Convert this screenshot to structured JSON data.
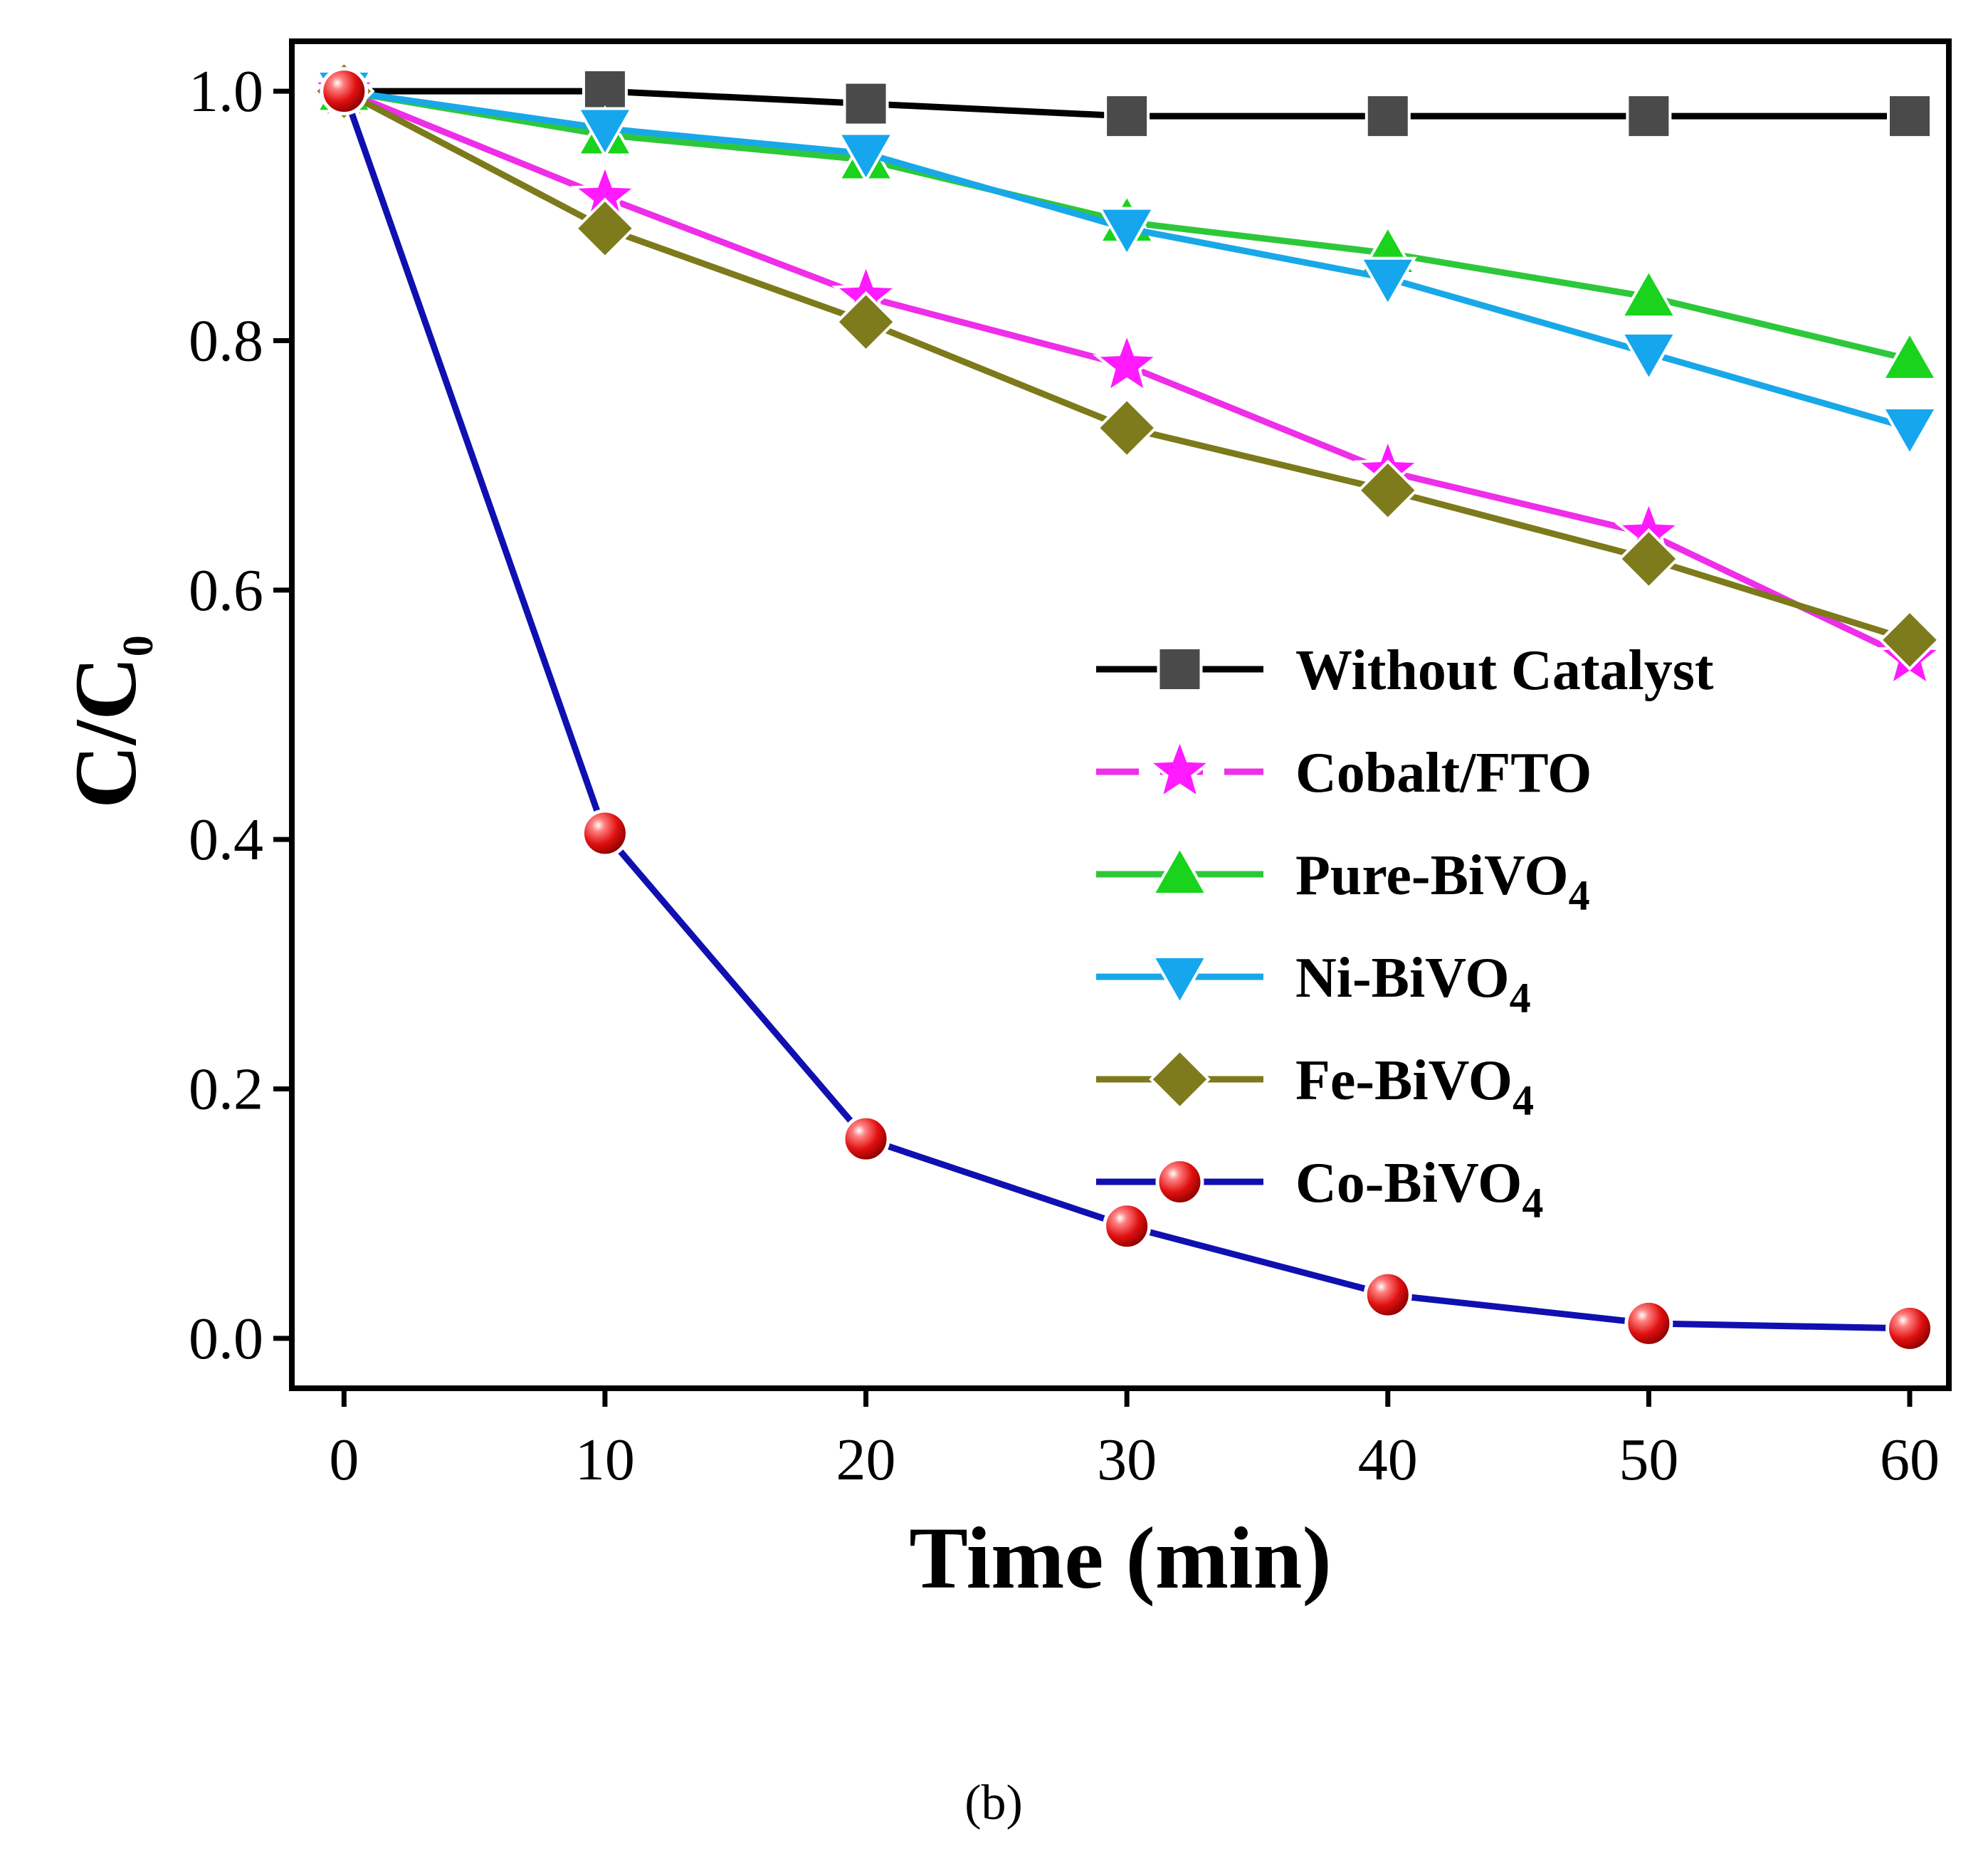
{
  "chart_data": {
    "type": "line",
    "panel_label": "(b)",
    "xlabel": "Time (min)",
    "ylabel_main": "C/C",
    "ylabel_sub": "0",
    "x": [
      0,
      10,
      20,
      30,
      40,
      50,
      60
    ],
    "xlim": [
      -2,
      61.5
    ],
    "ylim": [
      -0.04,
      1.04
    ],
    "x_ticks": [
      0,
      10,
      20,
      30,
      40,
      50,
      60
    ],
    "x_tick_labels": [
      "0",
      "10",
      "20",
      "30",
      "40",
      "50",
      "60"
    ],
    "y_ticks": [
      0.0,
      0.2,
      0.4,
      0.6,
      0.8,
      1.0
    ],
    "y_tick_labels": [
      "0.0",
      "0.2",
      "0.4",
      "0.6",
      "0.8",
      "1.0"
    ],
    "grid": false,
    "legend_position": "center-right",
    "series": [
      {
        "name": "Without Catalyst",
        "label_main": "Without Catalyst",
        "label_sub": "",
        "color": "#000000",
        "marker": "square",
        "marker_color": "#4a4a4a",
        "dashed": false,
        "values": [
          1.0,
          1.0,
          0.99,
          0.98,
          0.98,
          0.98,
          0.98
        ]
      },
      {
        "name": "Cobalt/FTO",
        "label_main": "Cobalt/FTO",
        "label_sub": "",
        "color": "#ee2ee8",
        "marker": "star",
        "marker_color": "#ff1aff",
        "dashed": true,
        "values": [
          1.0,
          0.915,
          0.835,
          0.78,
          0.695,
          0.645,
          0.545
        ]
      },
      {
        "name": "Pure-BiVO4",
        "label_main": "Pure-BiVO",
        "label_sub": "4",
        "color": "#2dc83a",
        "marker": "triangle-up",
        "marker_color": "#19d31c",
        "dashed": false,
        "values": [
          1.0,
          0.965,
          0.945,
          0.895,
          0.87,
          0.835,
          0.785
        ]
      },
      {
        "name": "Ni-BiVO4",
        "label_main": "Ni-BiVO",
        "label_sub": "4",
        "color": "#18a8e8",
        "marker": "triangle-down",
        "marker_color": "#16a6ee",
        "dashed": false,
        "values": [
          1.0,
          0.97,
          0.95,
          0.89,
          0.85,
          0.79,
          0.73
        ]
      },
      {
        "name": "Fe-BiVO4",
        "label_main": "Fe-BiVO",
        "label_sub": "4",
        "color": "#7c7a1a",
        "marker": "diamond",
        "marker_color": "#7d7b1c",
        "dashed": false,
        "values": [
          1.0,
          0.89,
          0.815,
          0.73,
          0.68,
          0.625,
          0.56
        ]
      },
      {
        "name": "Co-BiVO4",
        "label_main": "Co-BiVO",
        "label_sub": "4",
        "color": "#1010b0",
        "marker": "circle",
        "marker_color": "#e51a1a",
        "dashed": false,
        "values": [
          1.0,
          0.405,
          0.16,
          0.09,
          0.035,
          0.012,
          0.008
        ]
      }
    ]
  }
}
